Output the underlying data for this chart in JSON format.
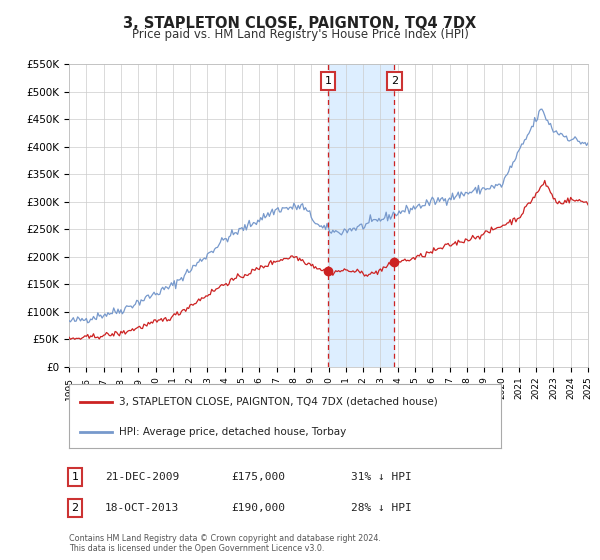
{
  "title": "3, STAPLETON CLOSE, PAIGNTON, TQ4 7DX",
  "subtitle": "Price paid vs. HM Land Registry's House Price Index (HPI)",
  "ylim": [
    0,
    550000
  ],
  "yticks": [
    0,
    50000,
    100000,
    150000,
    200000,
    250000,
    300000,
    350000,
    400000,
    450000,
    500000,
    550000
  ],
  "ytick_labels": [
    "£0",
    "£50K",
    "£100K",
    "£150K",
    "£200K",
    "£250K",
    "£300K",
    "£350K",
    "£400K",
    "£450K",
    "£500K",
    "£550K"
  ],
  "hpi_color": "#7799cc",
  "price_color": "#cc2222",
  "sale1_date": 2009.97,
  "sale1_price": 175000,
  "sale1_label": "1",
  "sale2_date": 2013.8,
  "sale2_price": 190000,
  "sale2_label": "2",
  "legend1": "3, STAPLETON CLOSE, PAIGNTON, TQ4 7DX (detached house)",
  "legend2": "HPI: Average price, detached house, Torbay",
  "annotation1_date": "21-DEC-2009",
  "annotation1_price": "£175,000",
  "annotation1_pct": "31% ↓ HPI",
  "annotation2_date": "18-OCT-2013",
  "annotation2_price": "£190,000",
  "annotation2_pct": "28% ↓ HPI",
  "footnote": "Contains HM Land Registry data © Crown copyright and database right 2024.\nThis data is licensed under the Open Government Licence v3.0.",
  "bg_color": "#ffffff",
  "grid_color": "#cccccc",
  "shade_color": "#ddeeff",
  "box_color": "#cc3333",
  "title_fontsize": 10.5,
  "subtitle_fontsize": 8.5
}
